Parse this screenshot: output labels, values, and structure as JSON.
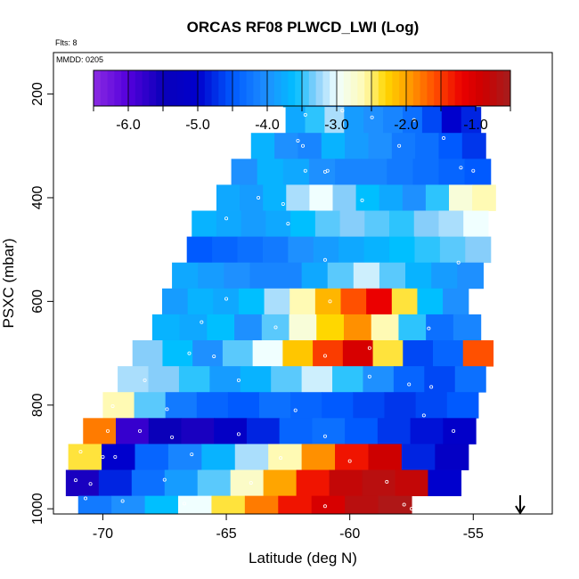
{
  "chart_data": {
    "type": "heatmap",
    "title": "ORCAS RF08 PLWCD_LWI (Log)",
    "note_flights": "Flts: 8",
    "note_date": "MMDD: 0205",
    "xlabel": "Latitude (deg N)",
    "ylabel": "PSXC (mbar)",
    "xlim": [
      -72,
      -51.8
    ],
    "ylim": [
      1010,
      120
    ],
    "x_ticks": [
      "-70",
      "-65",
      "-60",
      "-55"
    ],
    "x_tick_values": [
      -70,
      -65,
      -60,
      -55
    ],
    "y_ticks": [
      "200",
      "400",
      "600",
      "800",
      "1000"
    ],
    "y_tick_values": [
      200,
      400,
      600,
      800,
      1000
    ],
    "colorbar": {
      "range": [
        -6.5,
        -0.5
      ],
      "tick_labels": [
        "-6.0",
        "-5.0",
        "-4.0",
        "-3.0",
        "-2.0",
        "-1.0"
      ],
      "tick_values": [
        -6,
        -5,
        -4,
        -3,
        -2,
        -1
      ]
    },
    "arrow_marker": {
      "latitude": -53.1,
      "direction": "down"
    },
    "bin_width_mbar": 50,
    "rows": [
      {
        "pmid": 200,
        "x0": -62.7,
        "x1": -54.9,
        "values": [
          -3.6,
          -3.8,
          -4.0,
          -4.1,
          -4.3,
          -4.5,
          -4.8,
          -5.0,
          -5.2
        ]
      },
      {
        "pmid": 250,
        "x0": -62.6,
        "x1": -54.7,
        "values": [
          -3.8,
          -3.5,
          -3.2,
          -3.9,
          -4.0,
          -4.1,
          -4.3,
          -4.6,
          -5.0,
          -4.8
        ]
      },
      {
        "pmid": 300,
        "x0": -64.0,
        "x1": -54.5,
        "values": [
          -3.7,
          -4.0,
          -4.1,
          -3.7,
          -3.9,
          -4.0,
          -4.2,
          -4.3,
          -4.5,
          -4.7
        ]
      },
      {
        "pmid": 350,
        "x0": -64.8,
        "x1": -54.3,
        "values": [
          -4.0,
          -3.7,
          -3.8,
          -4.0,
          -4.1,
          -4.1,
          -4.2,
          -4.3,
          -4.4,
          -4.5
        ]
      },
      {
        "pmid": 400,
        "x0": -65.4,
        "x1": -54.1,
        "values": [
          -3.8,
          -3.9,
          -3.7,
          -3.2,
          -3.0,
          -3.3,
          -3.6,
          -3.8,
          -4.0,
          -3.5,
          -2.8,
          -2.6
        ]
      },
      {
        "pmid": 450,
        "x0": -66.4,
        "x1": -54.4,
        "values": [
          -3.7,
          -3.8,
          -3.9,
          -3.8,
          -3.6,
          -3.4,
          -3.3,
          -3.4,
          -3.5,
          -3.3,
          -3.2,
          -3.0
        ]
      },
      {
        "pmid": 500,
        "x0": -66.6,
        "x1": -54.3,
        "values": [
          -4.5,
          -4.4,
          -4.3,
          -4.2,
          -4.0,
          -3.9,
          -3.8,
          -3.7,
          -3.6,
          -3.5,
          -3.4,
          -3.3
        ]
      },
      {
        "pmid": 550,
        "x0": -67.2,
        "x1": -54.6,
        "values": [
          -3.8,
          -3.9,
          -4.0,
          -4.1,
          -4.1,
          -3.8,
          -3.4,
          -3.1,
          -3.4,
          -3.7,
          -3.9,
          -4.0
        ]
      },
      {
        "pmid": 600,
        "x0": -67.6,
        "x1": -55.2,
        "values": [
          -3.9,
          -3.7,
          -3.8,
          -3.6,
          -3.2,
          -2.6,
          -2.1,
          -1.6,
          -1.2,
          -2.4,
          -3.6,
          -4.0
        ]
      },
      {
        "pmid": 650,
        "x0": -68.0,
        "x1": -54.7,
        "values": [
          -3.7,
          -3.8,
          -3.6,
          -4.0,
          -3.4,
          -2.8,
          -2.3,
          -1.9,
          -2.6,
          -3.5,
          -4.3,
          -4.1
        ]
      },
      {
        "pmid": 700,
        "x0": -68.8,
        "x1": -54.2,
        "values": [
          -3.3,
          -3.6,
          -4.0,
          -3.4,
          -3.0,
          -2.2,
          -1.5,
          -1.0,
          -2.4,
          -4.6,
          -4.4,
          -1.6
        ]
      },
      {
        "pmid": 750,
        "x0": -69.4,
        "x1": -54.5,
        "values": [
          -3.2,
          -3.3,
          -3.5,
          -3.9,
          -3.7,
          -3.4,
          -3.1,
          -3.5,
          -4.0,
          -4.4,
          -4.6,
          -4.3
        ]
      },
      {
        "pmid": 800,
        "x0": -70.0,
        "x1": -54.8,
        "values": [
          -2.6,
          -3.4,
          -4.2,
          -4.4,
          -4.5,
          -4.3,
          -4.4,
          -4.5,
          -4.6,
          -4.7,
          -4.6,
          -4.5
        ]
      },
      {
        "pmid": 850,
        "x0": -70.8,
        "x1": -54.9,
        "values": [
          -1.8,
          -5.8,
          -5.5,
          -5.6,
          -5.2,
          -4.8,
          -4.4,
          -4.3,
          -4.5,
          -4.7,
          -4.9,
          -5.1
        ]
      },
      {
        "pmid": 900,
        "x0": -71.4,
        "x1": -55.2,
        "values": [
          -2.4,
          -5.0,
          -4.4,
          -4.1,
          -3.7,
          -3.2,
          -2.6,
          -1.9,
          -1.3,
          -0.9,
          -4.8,
          -5.2
        ]
      },
      {
        "pmid": 950,
        "x0": -71.5,
        "x1": -55.5,
        "values": [
          -5.6,
          -4.8,
          -4.3,
          -3.9,
          -3.4,
          -2.7,
          -2.0,
          -1.3,
          -0.8,
          -0.7,
          -0.8,
          -5.0
        ]
      },
      {
        "pmid": 1000,
        "x0": -71.0,
        "x1": -57.5,
        "values": [
          -4.2,
          -4.0,
          -3.6,
          -3.0,
          -2.4,
          -1.8,
          -1.3,
          -1.0,
          -0.7,
          -0.6
        ]
      }
    ],
    "sample_points": [
      [
        -62.2,
        198
      ],
      [
        -61.5,
        198
      ],
      [
        -61.0,
        198
      ],
      [
        -60.5,
        198
      ],
      [
        -60.0,
        198
      ],
      [
        -59.5,
        198
      ],
      [
        -59.0,
        198
      ],
      [
        -58.5,
        198
      ],
      [
        -58.0,
        198
      ],
      [
        -57.5,
        198
      ],
      [
        -57.0,
        198
      ],
      [
        -56.5,
        198
      ],
      [
        -56.0,
        198
      ],
      [
        -55.5,
        198
      ],
      [
        -61.8,
        240
      ],
      [
        -60.3,
        232
      ],
      [
        -59.1,
        245
      ],
      [
        -57.4,
        250
      ],
      [
        -62.1,
        290
      ],
      [
        -61.9,
        300
      ],
      [
        -58.0,
        300
      ],
      [
        -56.2,
        285
      ],
      [
        -61.8,
        348
      ],
      [
        -61.0,
        350
      ],
      [
        -60.9,
        348
      ],
      [
        -55.5,
        342
      ],
      [
        -55.0,
        348
      ],
      [
        -63.7,
        400
      ],
      [
        -62.7,
        412
      ],
      [
        -59.5,
        405
      ],
      [
        -65.0,
        440
      ],
      [
        -62.5,
        450
      ],
      [
        -67.0,
        510
      ],
      [
        -61.0,
        520
      ],
      [
        -55.6,
        525
      ],
      [
        -65.0,
        595
      ],
      [
        -60.8,
        600
      ],
      [
        -66.0,
        640
      ],
      [
        -63.0,
        650
      ],
      [
        -56.8,
        652
      ],
      [
        -66.5,
        700
      ],
      [
        -65.5,
        706
      ],
      [
        -61.0,
        705
      ],
      [
        -59.2,
        690
      ],
      [
        -68.3,
        752
      ],
      [
        -64.5,
        752
      ],
      [
        -59.2,
        745
      ],
      [
        -57.6,
        760
      ],
      [
        -56.7,
        765
      ],
      [
        -69.6,
        802
      ],
      [
        -67.4,
        808
      ],
      [
        -62.2,
        810
      ],
      [
        -57.0,
        820
      ],
      [
        -69.8,
        850
      ],
      [
        -68.5,
        850
      ],
      [
        -67.2,
        862
      ],
      [
        -64.5,
        856
      ],
      [
        -61.0,
        860
      ],
      [
        -55.8,
        850
      ],
      [
        -70.9,
        890
      ],
      [
        -70.0,
        900
      ],
      [
        -69.5,
        900
      ],
      [
        -66.4,
        895
      ],
      [
        -62.8,
        902
      ],
      [
        -60.0,
        908
      ],
      [
        -71.1,
        945
      ],
      [
        -70.5,
        952
      ],
      [
        -67.5,
        944
      ],
      [
        -64.0,
        950
      ],
      [
        -58.5,
        948
      ],
      [
        -70.7,
        980
      ],
      [
        -69.2,
        985
      ],
      [
        -66.7,
        990
      ],
      [
        -61.0,
        995
      ],
      [
        -57.8,
        992
      ],
      [
        -57.5,
        1000
      ]
    ]
  }
}
